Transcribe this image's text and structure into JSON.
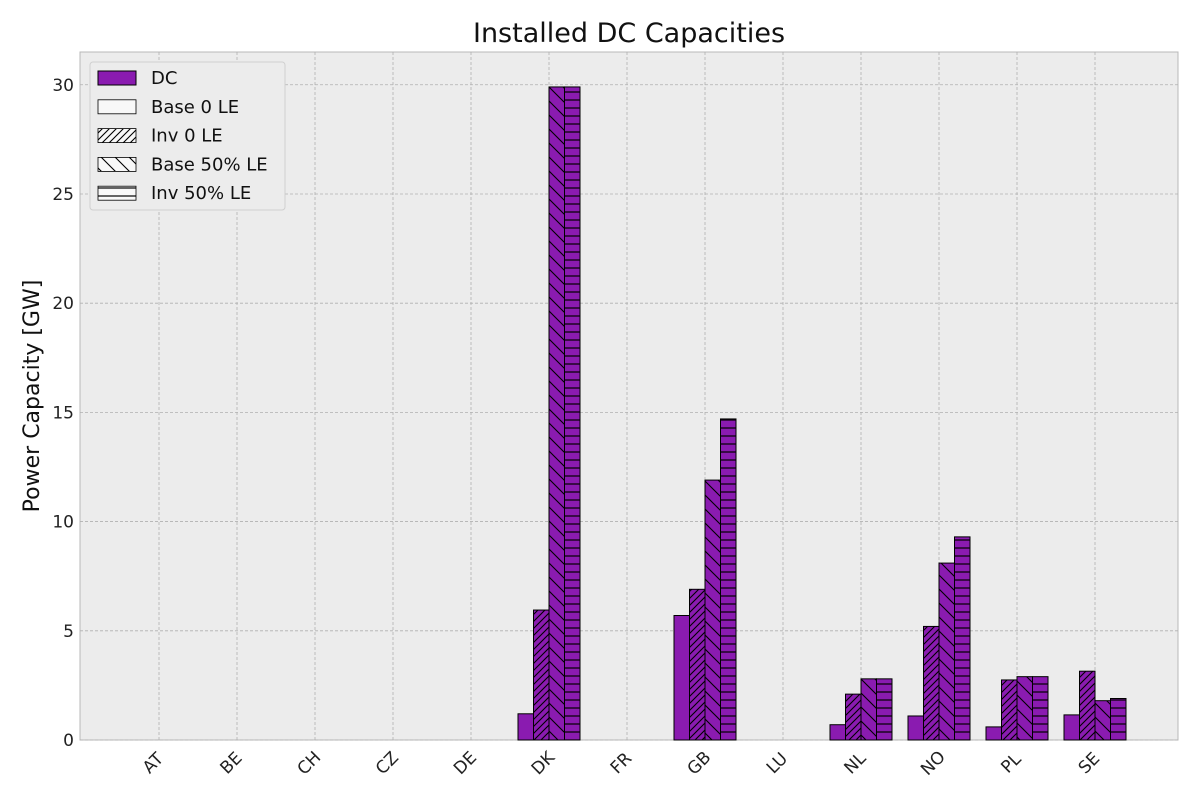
{
  "chart_data": {
    "type": "bar",
    "title": "Installed DC Capacities",
    "xlabel": "",
    "ylabel": "Power Capacity [GW]",
    "ylim": [
      0,
      31.5
    ],
    "yticks": [
      0,
      5,
      10,
      15,
      20,
      25,
      30
    ],
    "grid": true,
    "legend_position": "top-left",
    "bar_color": "#8a1bb0",
    "legend_label": "DC",
    "categories": [
      "AT",
      "BE",
      "CH",
      "CZ",
      "DE",
      "DK",
      "FR",
      "GB",
      "LU",
      "NL",
      "NO",
      "PL",
      "SE"
    ],
    "series": [
      {
        "name": "Base 0 LE",
        "hatch": "none",
        "values": [
          0,
          0,
          0,
          0,
          0,
          1.2,
          0,
          5.7,
          0,
          0.7,
          1.1,
          0.6,
          1.15
        ]
      },
      {
        "name": "Inv 0 LE",
        "hatch": "forward-diagonal",
        "values": [
          0,
          0,
          0,
          0,
          0,
          5.95,
          0,
          6.9,
          0,
          2.1,
          5.2,
          2.75,
          3.15
        ]
      },
      {
        "name": "Base 50% LE",
        "hatch": "back-diagonal",
        "values": [
          0,
          0,
          0,
          0,
          0,
          29.9,
          0,
          11.9,
          0,
          2.8,
          8.1,
          2.9,
          1.8
        ]
      },
      {
        "name": "Inv 50% LE",
        "hatch": "horizontal",
        "values": [
          0,
          0,
          0,
          0,
          0,
          29.9,
          0,
          14.7,
          0,
          2.8,
          9.3,
          2.9,
          1.9
        ]
      }
    ]
  }
}
